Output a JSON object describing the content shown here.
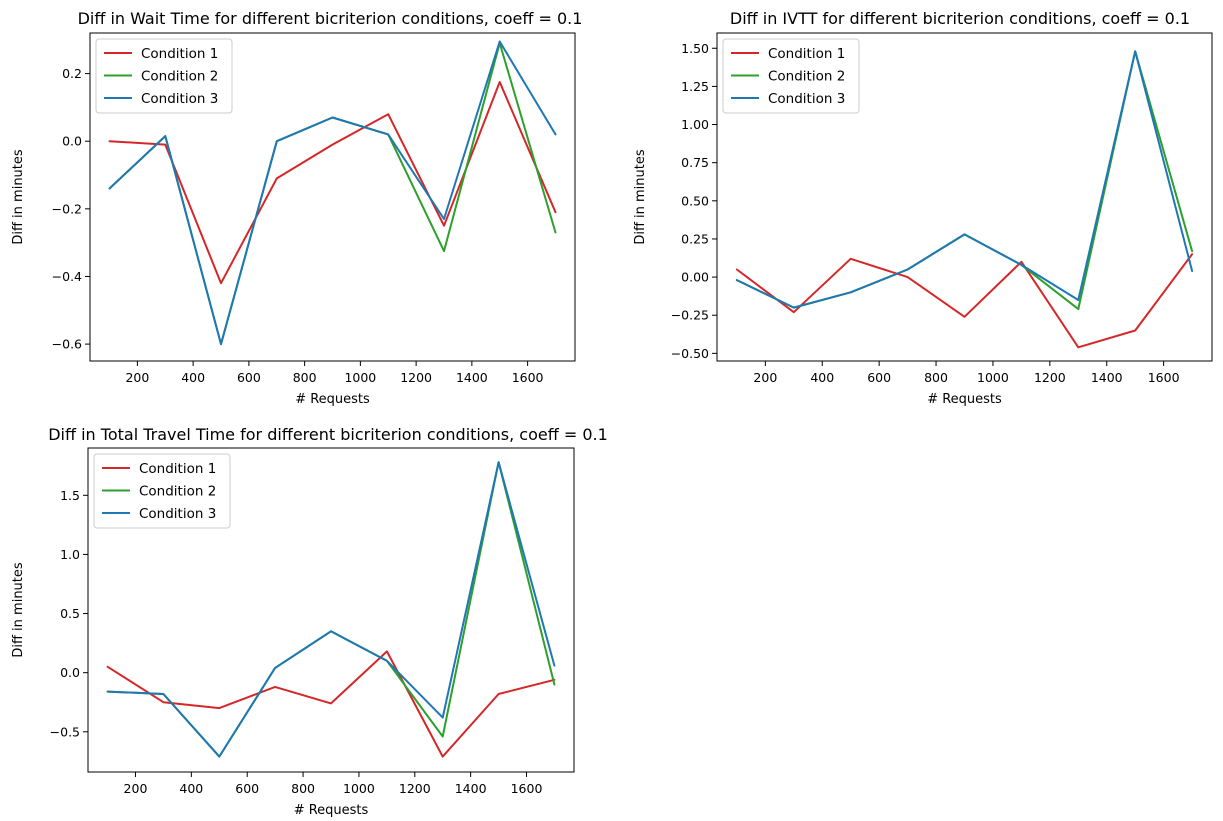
{
  "colors": {
    "Condition 1": "#d62728",
    "Condition 2": "#2ca02c",
    "Condition 3": "#1f77b4"
  },
  "chart_data": [
    {
      "type": "line",
      "title": "Diff in Wait Time for different bicriterion conditions, coeff = 0.1",
      "xlabel": "# Requests",
      "ylabel": "Diff in minutes",
      "x": [
        100,
        300,
        500,
        700,
        900,
        1100,
        1300,
        1500,
        1700
      ],
      "xlim": [
        30,
        1770
      ],
      "ylim": [
        -0.65,
        0.32
      ],
      "xticks": [
        200,
        400,
        600,
        800,
        1000,
        1200,
        1400,
        1600
      ],
      "yticks": [
        -0.6,
        -0.4,
        -0.2,
        0.0,
        0.2
      ],
      "ytick_labels": [
        "−0.6",
        "−0.4",
        "−0.2",
        "0.0",
        "0.2"
      ],
      "legend": "top-left",
      "series": [
        {
          "name": "Condition 1",
          "values": [
            0.0,
            -0.01,
            -0.42,
            -0.11,
            -0.01,
            0.08,
            -0.25,
            0.175,
            -0.21
          ]
        },
        {
          "name": "Condition 2",
          "values": [
            -0.14,
            0.015,
            -0.6,
            0.0,
            0.07,
            0.02,
            -0.325,
            0.29,
            -0.27
          ]
        },
        {
          "name": "Condition 3",
          "values": [
            -0.14,
            0.015,
            -0.6,
            0.0,
            0.07,
            0.02,
            -0.23,
            0.295,
            0.02
          ]
        }
      ]
    },
    {
      "type": "line",
      "title": "Diff in IVTT for different bicriterion conditions, coeff = 0.1",
      "xlabel": "# Requests",
      "ylabel": "Diff in minutes",
      "x": [
        100,
        300,
        500,
        700,
        900,
        1100,
        1300,
        1500,
        1700
      ],
      "xlim": [
        30,
        1770
      ],
      "ylim": [
        -0.55,
        1.6
      ],
      "xticks": [
        200,
        400,
        600,
        800,
        1000,
        1200,
        1400,
        1600
      ],
      "yticks": [
        -0.5,
        -0.25,
        0.0,
        0.25,
        0.5,
        0.75,
        1.0,
        1.25,
        1.5
      ],
      "ytick_labels": [
        "−0.50",
        "−0.25",
        "0.00",
        "0.25",
        "0.50",
        "0.75",
        "1.00",
        "1.25",
        "1.50"
      ],
      "legend": "top-left",
      "series": [
        {
          "name": "Condition 1",
          "values": [
            0.05,
            -0.23,
            0.12,
            0.0,
            -0.26,
            0.1,
            -0.46,
            -0.35,
            0.15
          ]
        },
        {
          "name": "Condition 2",
          "values": [
            -0.02,
            -0.2,
            -0.1,
            0.05,
            0.28,
            0.08,
            -0.21,
            1.48,
            0.17
          ]
        },
        {
          "name": "Condition 3",
          "values": [
            -0.02,
            -0.2,
            -0.1,
            0.05,
            0.28,
            0.08,
            -0.15,
            1.48,
            0.04
          ]
        }
      ]
    },
    {
      "type": "line",
      "title": "Diff in Total Travel Time for different bicriterion conditions, coeff = 0.1",
      "xlabel": "# Requests",
      "ylabel": "Diff in minutes",
      "x": [
        100,
        300,
        500,
        700,
        900,
        1100,
        1300,
        1500,
        1700
      ],
      "xlim": [
        30,
        1770
      ],
      "ylim": [
        -0.84,
        1.9
      ],
      "xticks": [
        200,
        400,
        600,
        800,
        1000,
        1200,
        1400,
        1600
      ],
      "yticks": [
        -0.5,
        0.0,
        0.5,
        1.0,
        1.5
      ],
      "ytick_labels": [
        "−0.5",
        "0.0",
        "0.5",
        "1.0",
        "1.5"
      ],
      "legend": "top-left",
      "series": [
        {
          "name": "Condition 1",
          "values": [
            0.05,
            -0.25,
            -0.3,
            -0.12,
            -0.26,
            0.18,
            -0.71,
            -0.18,
            -0.06
          ]
        },
        {
          "name": "Condition 2",
          "values": [
            -0.16,
            -0.18,
            -0.71,
            0.04,
            0.35,
            0.1,
            -0.54,
            1.78,
            -0.1
          ]
        },
        {
          "name": "Condition 3",
          "values": [
            -0.16,
            -0.18,
            -0.71,
            0.04,
            0.35,
            0.1,
            -0.38,
            1.78,
            0.06
          ]
        }
      ]
    }
  ]
}
